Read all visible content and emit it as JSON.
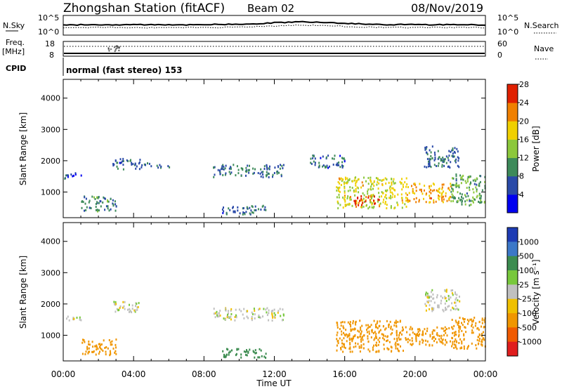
{
  "header": {
    "station": "Zhongshan Station (fitACF)",
    "beam": "Beam 02",
    "date": "08/Nov/2019"
  },
  "noise_panel": {
    "left_label": "N.Sky",
    "right_label": "N.Search",
    "ticks_left": [
      "10^5",
      "10^0"
    ],
    "ticks_right": [
      "10^5",
      "10^0"
    ]
  },
  "freq_panel": {
    "left_label_1": "Freq.",
    "left_label_2": "[MHz]",
    "right_label": "Nave",
    "ticks_left": [
      "18",
      "8"
    ],
    "ticks_right": [
      "60",
      "0"
    ]
  },
  "cpid": {
    "label": "CPID",
    "text": "normal (fast stereo) 153"
  },
  "chart_data": [
    {
      "type": "heatmap",
      "title": "",
      "xlabel": "",
      "ylabel": "Slant Range [km]",
      "xlim": [
        0,
        24
      ],
      "ylim": [
        180,
        4600
      ],
      "yticks": [
        "1000",
        "2000",
        "3000",
        "4000"
      ],
      "colorbar": {
        "label": "Power [dB]",
        "ticks": [
          "4",
          "8",
          "12",
          "16",
          "20",
          "24",
          "28"
        ],
        "range": [
          0,
          30
        ],
        "colors": [
          "#0000f0",
          "#2a4aa8",
          "#3d8a5a",
          "#8cc83c",
          "#f0d000",
          "#f08000",
          "#e02000"
        ]
      },
      "echo_regions": [
        {
          "t": [
            0.0,
            1.0
          ],
          "range_km": [
            1450,
            1650
          ],
          "power_db": 6
        },
        {
          "t": [
            1.0,
            3.0
          ],
          "range_km": [
            400,
            900
          ],
          "power_db": 10
        },
        {
          "t": [
            2.8,
            4.5
          ],
          "range_km": [
            1750,
            2100
          ],
          "power_db": 8
        },
        {
          "t": [
            4.5,
            6.0
          ],
          "range_km": [
            1800,
            1950
          ],
          "power_db": 9
        },
        {
          "t": [
            8.5,
            12.5
          ],
          "range_km": [
            1500,
            1900
          ],
          "power_db": 9
        },
        {
          "t": [
            9.0,
            11.5
          ],
          "range_km": [
            300,
            600
          ],
          "power_db": 8
        },
        {
          "t": [
            14.0,
            16.0
          ],
          "range_km": [
            1800,
            2200
          ],
          "power_db": 8
        },
        {
          "t": [
            15.5,
            19.5
          ],
          "range_km": [
            500,
            1500
          ],
          "power_db": 18
        },
        {
          "t": [
            16.5,
            18.0
          ],
          "range_km": [
            600,
            900
          ],
          "power_db": 28
        },
        {
          "t": [
            19.5,
            22.0
          ],
          "range_km": [
            700,
            1300
          ],
          "power_db": 22
        },
        {
          "t": [
            20.5,
            22.5
          ],
          "range_km": [
            1800,
            2500
          ],
          "power_db": 8
        },
        {
          "t": [
            22.0,
            24.0
          ],
          "range_km": [
            600,
            1600
          ],
          "power_db": 12
        }
      ]
    },
    {
      "type": "heatmap",
      "title": "",
      "xlabel": "Time UT",
      "ylabel": "Slant Range [km]",
      "xlim": [
        0,
        24
      ],
      "ylim": [
        180,
        4600
      ],
      "xticks": [
        "00:00",
        "04:00",
        "08:00",
        "12:00",
        "16:00",
        "20:00",
        "00:00"
      ],
      "yticks": [
        "1000",
        "2000",
        "3000",
        "4000"
      ],
      "colorbar": {
        "label": "Velocity [m s⁻¹]",
        "ticks": [
          "1000",
          "500",
          "100",
          "25",
          "-25",
          "-100",
          "-500",
          "-1000"
        ],
        "colors": [
          "#1e3cb4",
          "#3c78c8",
          "#3c8c50",
          "#78c83c",
          "#c0c0c0",
          "#f0c000",
          "#f09600",
          "#f05a00",
          "#e01e1e"
        ]
      },
      "echo_regions": [
        {
          "t": [
            0.0,
            1.0
          ],
          "range_km": [
            1450,
            1650
          ],
          "velocity": 0
        },
        {
          "t": [
            1.0,
            3.0
          ],
          "range_km": [
            400,
            900
          ],
          "velocity": -300
        },
        {
          "t": [
            2.8,
            4.5
          ],
          "range_km": [
            1750,
            2100
          ],
          "velocity": 0
        },
        {
          "t": [
            8.5,
            12.5
          ],
          "range_km": [
            1500,
            1900
          ],
          "velocity": 0
        },
        {
          "t": [
            9.0,
            11.5
          ],
          "range_km": [
            300,
            600
          ],
          "velocity": 150
        },
        {
          "t": [
            15.5,
            19.5
          ],
          "range_km": [
            500,
            1500
          ],
          "velocity": -300
        },
        {
          "t": [
            19.5,
            22.0
          ],
          "range_km": [
            700,
            1300
          ],
          "velocity": -300
        },
        {
          "t": [
            20.5,
            22.5
          ],
          "range_km": [
            1800,
            2500
          ],
          "velocity": 0
        },
        {
          "t": [
            22.0,
            24.0
          ],
          "range_km": [
            600,
            1600
          ],
          "velocity": -150
        }
      ]
    }
  ]
}
